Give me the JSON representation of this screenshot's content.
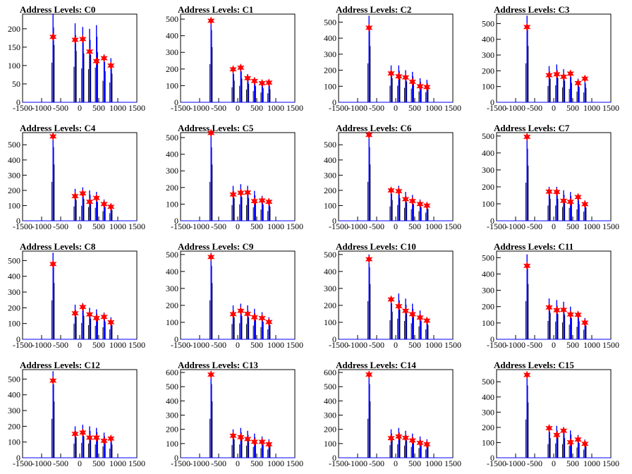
{
  "chart_data": [
    {
      "type": "bar",
      "title": "Address Levels: C0",
      "xlim": [
        -1500,
        1500
      ],
      "ylim": [
        0,
        240
      ],
      "yticks": [
        0,
        50,
        100,
        150,
        200
      ],
      "xticks": [
        -1500,
        -1000,
        -500,
        0,
        500,
        1000,
        1500
      ],
      "xtick_labels": [
        "-1500",
        "-1000",
        "-500",
        "0",
        "500",
        "1000",
        "1500"
      ],
      "peak_x": [
        -700,
        -120,
        80,
        260,
        440,
        640,
        820
      ],
      "peak_heights": [
        240,
        215,
        205,
        200,
        210,
        130,
        120
      ],
      "marker_y": [
        178,
        170,
        172,
        138,
        112,
        120,
        100
      ]
    },
    {
      "type": "bar",
      "title": "Address Levels: C1",
      "xlim": [
        -1500,
        1500
      ],
      "ylim": [
        0,
        530
      ],
      "yticks": [
        0,
        100,
        200,
        300,
        400,
        500
      ],
      "xticks": [
        -1500,
        -1000,
        -500,
        0,
        500,
        1000,
        1500
      ],
      "xtick_labels": [
        "-1500",
        "-1000",
        "-500",
        "0",
        "500",
        "1000",
        "1500"
      ],
      "peak_x": [
        -700,
        -120,
        80,
        260,
        440,
        640,
        820
      ],
      "peak_heights": [
        510,
        200,
        220,
        170,
        150,
        130,
        120
      ],
      "marker_y": [
        490,
        198,
        208,
        145,
        128,
        115,
        118
      ]
    },
    {
      "type": "bar",
      "title": "Address Levels: C2",
      "xlim": [
        -1500,
        1500
      ],
      "ylim": [
        0,
        550
      ],
      "yticks": [
        0,
        100,
        200,
        300,
        400,
        500
      ],
      "xticks": [
        -1500,
        -1000,
        -500,
        0,
        500,
        1000,
        1500
      ],
      "xtick_labels": [
        "-1500",
        "-1000",
        "-500",
        "0",
        "500",
        "1000",
        "1500"
      ],
      "peak_x": [
        -700,
        -120,
        80,
        260,
        440,
        640,
        820
      ],
      "peak_heights": [
        540,
        230,
        230,
        200,
        190,
        150,
        140
      ],
      "marker_y": [
        465,
        180,
        162,
        155,
        128,
        100,
        95
      ]
    },
    {
      "type": "bar",
      "title": "Address Levels: C3",
      "xlim": [
        -1500,
        1500
      ],
      "ylim": [
        0,
        560
      ],
      "yticks": [
        0,
        100,
        200,
        300,
        400,
        500
      ],
      "xticks": [
        -1500,
        -1000,
        -500,
        0,
        500,
        1000,
        1500
      ],
      "xtick_labels": [
        "-1500",
        "-1000",
        "-500",
        "0",
        "500",
        "1000",
        "1500"
      ],
      "peak_x": [
        -700,
        -120,
        80,
        260,
        440,
        640,
        820
      ],
      "peak_heights": [
        550,
        230,
        240,
        210,
        190,
        150,
        140
      ],
      "marker_y": [
        478,
        172,
        178,
        162,
        182,
        122,
        150
      ]
    },
    {
      "type": "bar",
      "title": "Address Levels: C4",
      "xlim": [
        -1500,
        1500
      ],
      "ylim": [
        0,
        580
      ],
      "yticks": [
        0,
        100,
        200,
        300,
        400,
        500
      ],
      "xticks": [
        -1500,
        -1000,
        -500,
        0,
        500,
        1000,
        1500
      ],
      "xtick_labels": [
        "-1500",
        "-1000",
        "-500",
        "0",
        "500",
        "1000",
        "1500"
      ],
      "peak_x": [
        -700,
        -120,
        80,
        260,
        440,
        640,
        820
      ],
      "peak_heights": [
        570,
        210,
        220,
        200,
        190,
        140,
        110
      ],
      "marker_y": [
        555,
        162,
        180,
        125,
        150,
        110,
        92
      ]
    },
    {
      "type": "bar",
      "title": "Address Levels: C5",
      "xlim": [
        -1500,
        1500
      ],
      "ylim": [
        0,
        530
      ],
      "yticks": [
        0,
        100,
        200,
        300,
        400,
        500
      ],
      "xticks": [
        -1500,
        -1000,
        -500,
        0,
        500,
        1000,
        1500
      ],
      "xtick_labels": [
        "-1500",
        "-1000",
        "-500",
        "0",
        "500",
        "1000",
        "1500"
      ],
      "peak_x": [
        -700,
        -120,
        80,
        260,
        440,
        640,
        820
      ],
      "peak_heights": [
        520,
        210,
        220,
        210,
        180,
        150,
        130
      ],
      "marker_y": [
        528,
        158,
        168,
        170,
        118,
        122,
        114
      ]
    },
    {
      "type": "bar",
      "title": "Address Levels: C6",
      "xlim": [
        -1500,
        1500
      ],
      "ylim": [
        0,
        580
      ],
      "yticks": [
        0,
        100,
        200,
        300,
        400,
        500
      ],
      "xticks": [
        -1500,
        -1000,
        -500,
        0,
        500,
        1000,
        1500
      ],
      "xtick_labels": [
        "-1500",
        "-1000",
        "-500",
        "0",
        "500",
        "1000",
        "1500"
      ],
      "peak_x": [
        -700,
        -120,
        80,
        260,
        440,
        640,
        820
      ],
      "peak_heights": [
        570,
        210,
        230,
        190,
        170,
        140,
        120
      ],
      "marker_y": [
        565,
        200,
        195,
        142,
        130,
        110,
        100
      ]
    },
    {
      "type": "bar",
      "title": "Address Levels: C7",
      "xlim": [
        -1500,
        1500
      ],
      "ylim": [
        0,
        520
      ],
      "yticks": [
        0,
        100,
        200,
        300,
        400,
        500
      ],
      "xticks": [
        -1500,
        -1000,
        -500,
        0,
        500,
        1000,
        1500
      ],
      "xtick_labels": [
        "-1500",
        "-1000",
        "-500",
        "0",
        "500",
        "1000",
        "1500"
      ],
      "peak_x": [
        -700,
        -120,
        80,
        260,
        440,
        640,
        820
      ],
      "peak_heights": [
        500,
        200,
        200,
        180,
        170,
        150,
        120
      ],
      "marker_y": [
        495,
        172,
        170,
        118,
        112,
        140,
        98
      ]
    },
    {
      "type": "bar",
      "title": "Address Levels: C8",
      "xlim": [
        -1500,
        1500
      ],
      "ylim": [
        0,
        560
      ],
      "yticks": [
        0,
        100,
        200,
        300,
        400,
        500
      ],
      "xticks": [
        -1500,
        -1000,
        -500,
        0,
        500,
        1000,
        1500
      ],
      "xtick_labels": [
        "-1500",
        "-1000",
        "-500",
        "0",
        "500",
        "1000",
        "1500"
      ],
      "peak_x": [
        -700,
        -120,
        80,
        260,
        440,
        640,
        820
      ],
      "peak_heights": [
        550,
        220,
        230,
        200,
        190,
        170,
        140
      ],
      "marker_y": [
        478,
        165,
        205,
        158,
        135,
        142,
        108
      ]
    },
    {
      "type": "bar",
      "title": "Address Levels: C9",
      "xlim": [
        -1500,
        1500
      ],
      "ylim": [
        0,
        520
      ],
      "yticks": [
        0,
        100,
        200,
        300,
        400,
        500
      ],
      "xticks": [
        -1500,
        -1000,
        -500,
        0,
        500,
        1000,
        1500
      ],
      "xtick_labels": [
        "-1500",
        "-1000",
        "-500",
        "0",
        "500",
        "1000",
        "1500"
      ],
      "peak_x": [
        -700,
        -120,
        80,
        260,
        440,
        640,
        820
      ],
      "peak_heights": [
        510,
        200,
        210,
        200,
        180,
        160,
        130
      ],
      "marker_y": [
        485,
        148,
        168,
        150,
        130,
        125,
        102
      ]
    },
    {
      "type": "bar",
      "title": "Address Levels: C10",
      "xlim": [
        -1500,
        1500
      ],
      "ylim": [
        0,
        520
      ],
      "yticks": [
        0,
        100,
        200,
        300,
        400,
        500
      ],
      "xticks": [
        -1500,
        -1000,
        -500,
        0,
        500,
        1000,
        1500
      ],
      "xtick_labels": [
        "-1500",
        "-1000",
        "-500",
        "0",
        "500",
        "1000",
        "1500"
      ],
      "peak_x": [
        -700,
        -120,
        80,
        260,
        440,
        640,
        820
      ],
      "peak_heights": [
        500,
        250,
        270,
        240,
        210,
        170,
        130
      ],
      "marker_y": [
        472,
        235,
        195,
        168,
        148,
        128,
        110
      ]
    },
    {
      "type": "bar",
      "title": "Address Levels: C11",
      "xlim": [
        -1500,
        1500
      ],
      "ylim": [
        0,
        540
      ],
      "yticks": [
        0,
        100,
        200,
        300,
        400,
        500
      ],
      "xticks": [
        -1500,
        -1000,
        -500,
        0,
        500,
        1000,
        1500
      ],
      "xtick_labels": [
        "-1500",
        "-1000",
        "-500",
        "0",
        "500",
        "1000",
        "1500"
      ],
      "peak_x": [
        -700,
        -120,
        80,
        260,
        440,
        640,
        820
      ],
      "peak_heights": [
        520,
        250,
        240,
        230,
        200,
        170,
        130
      ],
      "marker_y": [
        450,
        195,
        178,
        180,
        152,
        150,
        102
      ]
    },
    {
      "type": "bar",
      "title": "Address Levels: C12",
      "xlim": [
        -1500,
        1500
      ],
      "ylim": [
        0,
        560
      ],
      "yticks": [
        0,
        100,
        200,
        300,
        400,
        500
      ],
      "xticks": [
        -1500,
        -1000,
        -500,
        0,
        500,
        1000,
        1500
      ],
      "xtick_labels": [
        "-1500",
        "-1000",
        "-500",
        "0",
        "500",
        "1000",
        "1500"
      ],
      "peak_x": [
        -700,
        -120,
        80,
        260,
        440,
        640,
        820
      ],
      "peak_heights": [
        550,
        200,
        210,
        200,
        190,
        160,
        130
      ],
      "marker_y": [
        490,
        152,
        160,
        128,
        128,
        108,
        122
      ]
    },
    {
      "type": "bar",
      "title": "Address Levels: C13",
      "xlim": [
        -1500,
        1500
      ],
      "ylim": [
        0,
        620
      ],
      "yticks": [
        0,
        100,
        200,
        300,
        400,
        500,
        600
      ],
      "xticks": [
        -1500,
        -1000,
        -500,
        0,
        500,
        1000,
        1500
      ],
      "xtick_labels": [
        "-1500",
        "-1000",
        "-500",
        "0",
        "500",
        "1000",
        "1500"
      ],
      "peak_x": [
        -700,
        -120,
        80,
        260,
        440,
        640,
        820
      ],
      "peak_heights": [
        610,
        200,
        210,
        190,
        170,
        150,
        130
      ],
      "marker_y": [
        585,
        155,
        145,
        132,
        112,
        112,
        95
      ]
    },
    {
      "type": "bar",
      "title": "Address Levels: C14",
      "xlim": [
        -1500,
        1500
      ],
      "ylim": [
        0,
        620
      ],
      "yticks": [
        0,
        100,
        200,
        300,
        400,
        500,
        600
      ],
      "xticks": [
        -1500,
        -1000,
        -500,
        0,
        500,
        1000,
        1500
      ],
      "xtick_labels": [
        "-1500",
        "-1000",
        "-500",
        "0",
        "500",
        "1000",
        "1500"
      ],
      "peak_x": [
        -700,
        -120,
        80,
        260,
        440,
        640,
        820
      ],
      "peak_heights": [
        610,
        200,
        210,
        190,
        170,
        150,
        130
      ],
      "marker_y": [
        585,
        138,
        150,
        140,
        122,
        105,
        95
      ]
    },
    {
      "type": "bar",
      "title": "Address Levels: C15",
      "xlim": [
        -1500,
        1500
      ],
      "ylim": [
        0,
        580
      ],
      "yticks": [
        0,
        100,
        200,
        300,
        400,
        500
      ],
      "xticks": [
        -1500,
        -1000,
        -500,
        0,
        500,
        1000,
        1500
      ],
      "xtick_labels": [
        "-1500",
        "-1000",
        "-500",
        "0",
        "500",
        "1000",
        "1500"
      ],
      "peak_x": [
        -700,
        -120,
        80,
        260,
        440,
        640,
        820
      ],
      "peak_heights": [
        560,
        200,
        210,
        200,
        180,
        150,
        120
      ],
      "marker_y": [
        545,
        195,
        150,
        178,
        102,
        120,
        92
      ]
    }
  ],
  "colors": {
    "histogram": "#0000ff",
    "spike_black": "#000000",
    "marker": "#ff0000",
    "axis": "#000000",
    "background": "#ffffff"
  }
}
